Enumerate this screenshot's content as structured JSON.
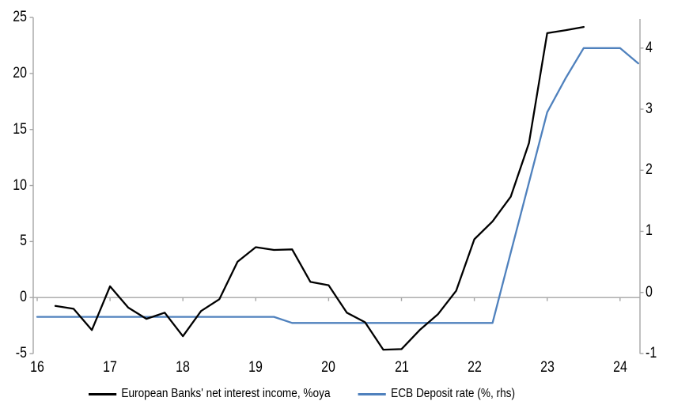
{
  "chart_data": {
    "type": "line",
    "title": "",
    "xlabel": "",
    "legend_position": "bottom",
    "grid": "zero-line-only",
    "colors": {
      "axis_gray": "#a6a6a6",
      "nii_black": "#000000",
      "ecb_blue": "#4f81bd"
    },
    "x_axis": {
      "tick_labels": [
        "16",
        "17",
        "18",
        "19",
        "20",
        "21",
        "22",
        "23",
        "24"
      ],
      "tick_values": [
        16,
        17,
        18,
        19,
        20,
        21,
        22,
        23,
        24
      ],
      "range": [
        16,
        24.33
      ]
    },
    "left_axis": {
      "tick_labels": [
        "25",
        "20",
        "15",
        "10",
        "5",
        "0",
        "-5"
      ],
      "tick_values": [
        25,
        20,
        15,
        10,
        5,
        0,
        -5
      ],
      "range": [
        -5,
        25
      ]
    },
    "right_axis": {
      "tick_labels": [
        "4",
        "3",
        "2",
        "1",
        "0",
        "-1"
      ],
      "tick_values": [
        4,
        3,
        2,
        1,
        0,
        -1
      ],
      "range": [
        -1,
        4.5
      ]
    },
    "series": [
      {
        "id": "ecb-deposit-rate-line",
        "name": "ECB Deposit rate (%, rhs)",
        "axis": "right",
        "color": "#4f81bd",
        "x": [
          16,
          16.25,
          16.5,
          16.75,
          17,
          17.25,
          17.5,
          17.75,
          18,
          18.25,
          18.5,
          18.75,
          19,
          19.25,
          19.5,
          19.75,
          20,
          20.25,
          20.5,
          20.75,
          21,
          21.25,
          21.5,
          21.75,
          22,
          22.25,
          22.5,
          22.75,
          23,
          23.25,
          23.5,
          23.75,
          24,
          24.25
        ],
        "values": [
          -0.4,
          -0.4,
          -0.4,
          -0.4,
          -0.4,
          -0.4,
          -0.4,
          -0.4,
          -0.4,
          -0.4,
          -0.4,
          -0.4,
          -0.4,
          -0.4,
          -0.5,
          -0.5,
          -0.5,
          -0.5,
          -0.5,
          -0.5,
          -0.5,
          -0.5,
          -0.5,
          -0.5,
          -0.5,
          -0.5,
          0.65,
          1.8,
          2.95,
          3.5,
          4.0,
          4.0,
          4.0,
          3.75
        ]
      },
      {
        "id": "nii-line",
        "name": "European Banks' net interest income, %oya",
        "axis": "left",
        "color": "#000000",
        "x": [
          16.25,
          16.5,
          16.75,
          17,
          17.25,
          17.5,
          17.75,
          18,
          18.25,
          18.5,
          18.75,
          19,
          19.25,
          19.5,
          19.75,
          20,
          20.25,
          20.5,
          20.75,
          21,
          21.25,
          21.5,
          21.75,
          22,
          22.25,
          22.5,
          22.75,
          23,
          23.25,
          23.5
        ],
        "values": [
          -0.75,
          -1.0,
          -2.9,
          1.0,
          -0.9,
          -1.9,
          -1.35,
          -3.45,
          -1.2,
          -0.15,
          3.2,
          4.5,
          4.25,
          4.3,
          1.4,
          1.1,
          -1.35,
          -2.2,
          -4.65,
          -4.6,
          -2.9,
          -1.5,
          0.6,
          5.2,
          6.8,
          9.0,
          13.8,
          23.6,
          23.85,
          24.15
        ]
      }
    ],
    "legend": {
      "nii_label": "European Banks' net interest income, %oya",
      "ecb_label": "ECB Deposit rate (%, rhs)"
    }
  }
}
